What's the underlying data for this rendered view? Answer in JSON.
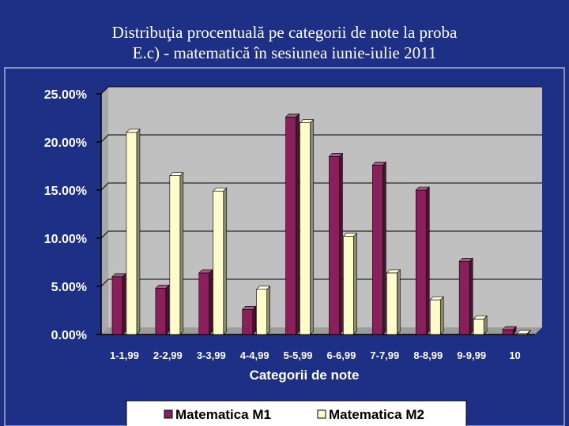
{
  "slide": {
    "title_line1": "Distribuţia procentuală pe categorii de note la proba",
    "title_line2": "E.c) - matematică în sesiunea iunie-iulie 2011",
    "background": "#1e2f86"
  },
  "chart_data": {
    "type": "bar",
    "title": "",
    "xlabel": "Categorii de note",
    "ylabel": "",
    "ylim": [
      0,
      25
    ],
    "yticks": [
      "0.00%",
      "5.00%",
      "10.00%",
      "15.00%",
      "20.00%",
      "25.00%"
    ],
    "ytick_values": [
      0,
      5,
      10,
      15,
      20,
      25
    ],
    "grid": true,
    "legend_position": "bottom",
    "categories": [
      "1-1,99",
      "2-2,99",
      "3-3,99",
      "4-4,99",
      "5-5,99",
      "6-6,99",
      "7-7,99",
      "8-8,99",
      "9-9,99",
      "10"
    ],
    "series": [
      {
        "name": "Matematica M1",
        "color": "#8a1f5c",
        "values": [
          6.0,
          4.8,
          6.4,
          2.6,
          22.6,
          18.5,
          17.6,
          15.0,
          7.6,
          0.5
        ]
      },
      {
        "name": "Matematica M2",
        "color": "#fffccc",
        "values": [
          21.0,
          16.5,
          14.9,
          4.7,
          22.0,
          10.2,
          6.4,
          3.6,
          1.6,
          0.1
        ]
      }
    ],
    "plot_area_color": "#c0c0c0"
  }
}
